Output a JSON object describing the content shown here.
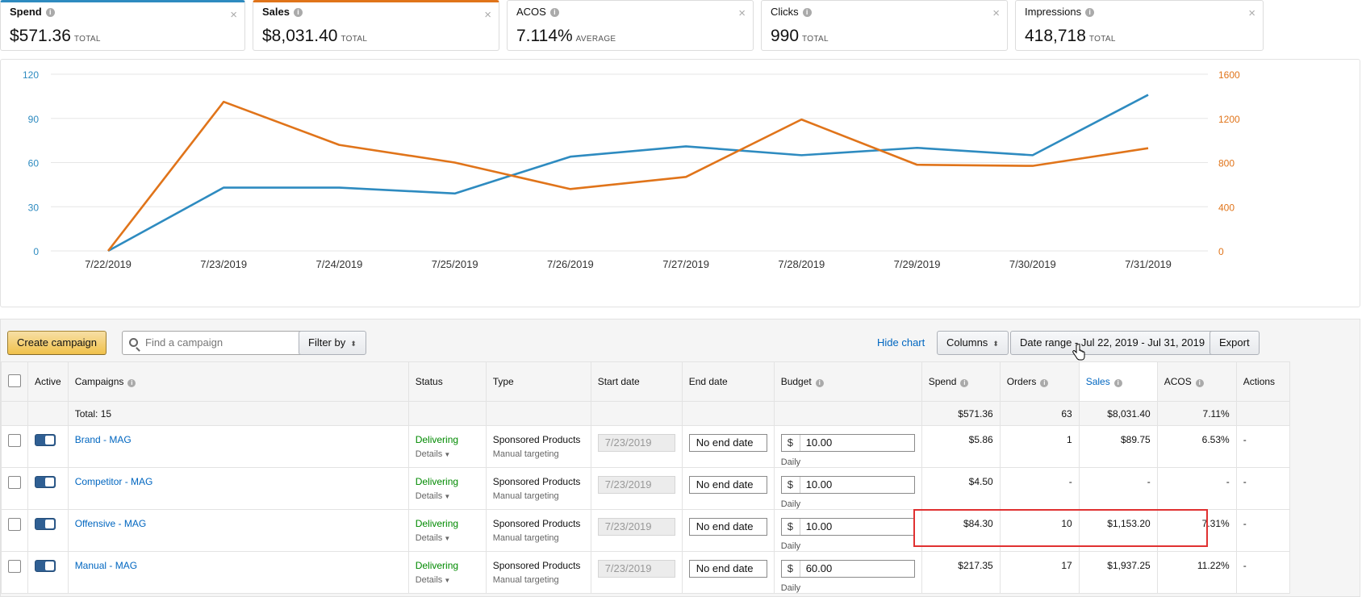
{
  "cards": [
    {
      "label": "Spend",
      "value": "$571.36",
      "unit": "TOTAL",
      "color": "#2e8bc0",
      "selected": true
    },
    {
      "label": "Sales",
      "value": "$8,031.40",
      "unit": "TOTAL",
      "color": "#e0741a",
      "selected": true
    },
    {
      "label": "ACOS",
      "value": "7.114%",
      "unit": "AVERAGE",
      "selected": false
    },
    {
      "label": "Clicks",
      "value": "990",
      "unit": "TOTAL",
      "selected": false
    },
    {
      "label": "Impressions",
      "value": "418,718",
      "unit": "TOTAL",
      "selected": false
    }
  ],
  "chart_data": {
    "type": "line",
    "categories": [
      "7/22/2019",
      "7/23/2019",
      "7/24/2019",
      "7/25/2019",
      "7/26/2019",
      "7/27/2019",
      "7/28/2019",
      "7/29/2019",
      "7/30/2019",
      "7/31/2019"
    ],
    "series": [
      {
        "name": "Spend",
        "axis": "left",
        "color": "#2e8bc0",
        "values": [
          0,
          43,
          43,
          39,
          64,
          71,
          65,
          70,
          65,
          106
        ]
      },
      {
        "name": "Sales",
        "axis": "right",
        "color": "#e0741a",
        "values": [
          0,
          1350,
          960,
          800,
          560,
          670,
          1190,
          780,
          770,
          930
        ]
      }
    ],
    "y_left": {
      "ticks": [
        "0",
        "30",
        "60",
        "90",
        "120"
      ],
      "min": 0,
      "max": 120,
      "color": "#2e8bc0"
    },
    "y_right": {
      "ticks": [
        "0",
        "400",
        "800",
        "1200",
        "1600"
      ],
      "min": 0,
      "max": 1600,
      "color": "#e0741a"
    },
    "grid": true,
    "legend": "none"
  },
  "toolbar": {
    "create_label": "Create campaign",
    "search_placeholder": "Find a campaign",
    "filter_label": "Filter by",
    "hide_chart_label": "Hide chart",
    "columns_label": "Columns",
    "date_range_label": "Date range - Jul 22, 2019 - Jul 31, 2019",
    "export_label": "Export"
  },
  "table": {
    "headers": {
      "active": "Active",
      "campaigns": "Campaigns",
      "status": "Status",
      "type": "Type",
      "start_date": "Start date",
      "end_date": "End date",
      "budget": "Budget",
      "spend": "Spend",
      "orders": "Orders",
      "sales": "Sales",
      "acos": "ACOS",
      "actions": "Actions"
    },
    "total": {
      "label": "Total: 15",
      "spend": "$571.36",
      "orders": "63",
      "sales": "$8,031.40",
      "acos": "7.11%"
    },
    "rows": [
      {
        "name": "Brand - MAG",
        "status": "Delivering",
        "details": "Details",
        "type": "Sponsored Products",
        "targeting": "Manual targeting",
        "start": "7/23/2019",
        "end": "No end date",
        "currency": "$",
        "budget": "10.00",
        "budget_period": "Daily",
        "spend": "$5.86",
        "orders": "1",
        "sales": "$89.75",
        "acos": "6.53%",
        "actions": "-"
      },
      {
        "name": "Competitor - MAG",
        "status": "Delivering",
        "details": "Details",
        "type": "Sponsored Products",
        "targeting": "Manual targeting",
        "start": "7/23/2019",
        "end": "No end date",
        "currency": "$",
        "budget": "10.00",
        "budget_period": "Daily",
        "spend": "$4.50",
        "orders": "-",
        "sales": "-",
        "acos": "-",
        "actions": "-"
      },
      {
        "name": "Offensive - MAG",
        "status": "Delivering",
        "details": "Details",
        "type": "Sponsored Products",
        "targeting": "Manual targeting",
        "start": "7/23/2019",
        "end": "No end date",
        "currency": "$",
        "budget": "10.00",
        "budget_period": "Daily",
        "spend": "$84.30",
        "orders": "10",
        "sales": "$1,153.20",
        "acos": "7.31%",
        "actions": "-"
      },
      {
        "name": "Manual - MAG",
        "status": "Delivering",
        "details": "Details",
        "type": "Sponsored Products",
        "targeting": "Manual targeting",
        "start": "7/23/2019",
        "end": "No end date",
        "currency": "$",
        "budget": "60.00",
        "budget_period": "Daily",
        "spend": "$217.35",
        "orders": "17",
        "sales": "$1,937.25",
        "acos": "11.22%",
        "actions": "-"
      }
    ]
  }
}
